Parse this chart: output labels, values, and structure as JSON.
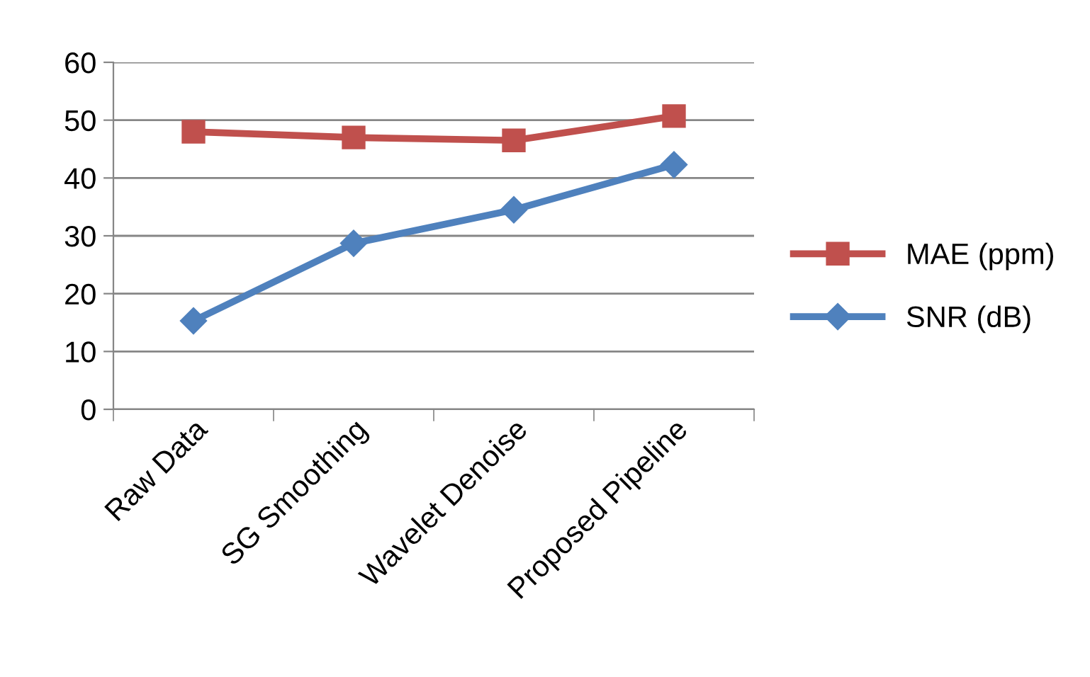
{
  "chart_data": {
    "type": "line",
    "categories": [
      "Raw Data",
      "SG Smoothing",
      "Wavelet Denoise",
      "Proposed Pipeline"
    ],
    "series": [
      {
        "name": "MAE (ppm)",
        "color": "#c0504d",
        "values": [
          48.0,
          47.0,
          46.5,
          50.7
        ],
        "marker": "square"
      },
      {
        "name": "SNR (dB)",
        "color": "#4f81bd",
        "values": [
          15.3,
          28.7,
          34.5,
          42.3
        ],
        "marker": "diamond"
      }
    ],
    "ylim": [
      0,
      60
    ],
    "yticks": [
      0,
      10,
      20,
      30,
      40,
      50,
      60
    ],
    "grid": "y",
    "legend": "right",
    "line_style": "solid"
  }
}
